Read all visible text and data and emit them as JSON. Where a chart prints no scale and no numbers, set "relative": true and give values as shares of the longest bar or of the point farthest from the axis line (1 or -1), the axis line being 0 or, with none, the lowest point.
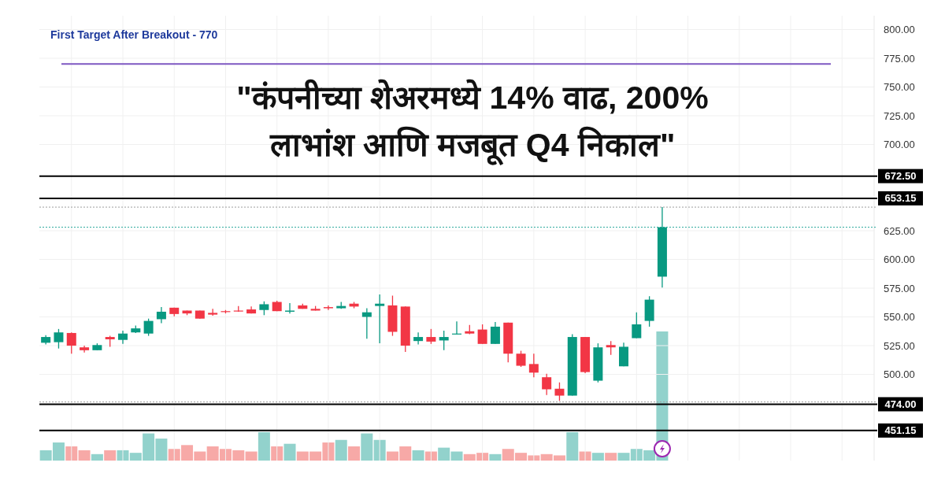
{
  "chart_data": [
    {
      "type": "candlestick",
      "title": "\"कंपनीच्या शेअरमध्ये 14% वाढ, 200%\nलाभांश आणि मजबूत Q4 निकाल\"",
      "categories": [
        null,
        null,
        null,
        null,
        null,
        null,
        null,
        null,
        null,
        null,
        null,
        null,
        null,
        null,
        null,
        null,
        null,
        null,
        null,
        null,
        null,
        null,
        null,
        null,
        null,
        null,
        null,
        null,
        null,
        null,
        null,
        null,
        null,
        null,
        null,
        null,
        null,
        null,
        null,
        null,
        null,
        null,
        null,
        null,
        null,
        null,
        null,
        null,
        null,
        null,
        null,
        null,
        null,
        null,
        null,
        null,
        null,
        null,
        null,
        null,
        null,
        null,
        null,
        null,
        null
      ],
      "ohlc": [
        [
          527.5,
          534,
          526,
          532.5
        ],
        [
          528,
          539.5,
          522.5,
          536.5
        ],
        [
          536,
          536.5,
          518,
          525
        ],
        [
          523.5,
          525,
          519,
          521
        ],
        [
          521,
          527,
          521,
          525.5
        ],
        [
          532.5,
          533.5,
          524,
          530.5
        ],
        [
          530,
          538,
          526.5,
          535.5
        ],
        [
          536.5,
          542.5,
          536,
          540
        ],
        [
          535.5,
          548.5,
          533.5,
          546.5
        ],
        [
          548,
          558.5,
          544.5,
          554.5
        ],
        [
          558,
          558,
          550.5,
          552.5
        ],
        [
          555.5,
          555.5,
          551.5,
          553
        ],
        [
          555.5,
          555.5,
          548.5,
          548.5
        ],
        [
          553.5,
          557,
          551,
          552
        ],
        [
          555,
          556,
          553,
          554.5
        ],
        [
          555.5,
          559.5,
          554.5,
          555
        ],
        [
          556.5,
          559,
          553,
          553
        ],
        [
          556,
          563.5,
          551.5,
          561
        ],
        [
          563,
          564,
          555,
          555
        ],
        [
          554.5,
          562,
          553,
          555.5
        ],
        [
          560,
          561.5,
          557,
          557
        ],
        [
          557,
          559.5,
          555.5,
          555.5
        ],
        [
          558.5,
          560,
          556,
          557.5
        ],
        [
          557.5,
          563,
          557,
          559.5
        ],
        [
          561.5,
          563,
          557.5,
          559
        ],
        [
          550,
          557.5,
          531,
          554
        ],
        [
          559.5,
          569.5,
          527,
          561.5
        ],
        [
          560,
          568.5,
          533.5,
          537
        ],
        [
          559,
          559,
          519.5,
          525
        ],
        [
          529,
          536.5,
          526,
          532.5
        ],
        [
          532.5,
          539.5,
          526.5,
          528.5
        ],
        [
          529.5,
          538,
          521,
          532.5
        ],
        [
          535,
          546,
          535,
          535.5
        ],
        [
          537.5,
          543,
          535,
          535.5
        ],
        [
          539,
          543.5,
          526.5,
          526.5
        ],
        [
          526.5,
          545.5,
          526.5,
          541.5
        ],
        [
          545,
          545,
          510.5,
          518
        ],
        [
          518,
          520.5,
          506.5,
          507.5
        ],
        [
          509,
          518,
          497.5,
          501.5
        ],
        [
          497.5,
          500.5,
          482,
          487
        ],
        [
          487.5,
          493,
          477,
          481.5
        ],
        [
          481.5,
          535,
          481.5,
          532.5
        ],
        [
          532.5,
          532.5,
          501,
          502
        ],
        [
          494.5,
          527,
          493,
          523.5
        ],
        [
          525.5,
          529,
          517,
          523.5
        ],
        [
          507,
          527.5,
          507,
          524
        ],
        [
          531.5,
          554,
          531.5,
          543.5
        ],
        [
          546.5,
          568,
          541.5,
          565
        ],
        [
          585,
          645.5,
          575.5,
          628
        ],
        null,
        null,
        null,
        null,
        null,
        null,
        null,
        null,
        null,
        null,
        null,
        null,
        null,
        null,
        null,
        null
      ],
      "colors": [
        "#089981",
        "#089981",
        "#f23645",
        "#f23645",
        "#089981",
        "#f23645",
        "#089981",
        "#089981",
        "#089981",
        "#089981",
        "#f23645",
        "#f23645",
        "#f23645",
        "#f23645",
        "#f23645",
        "#f23645",
        "#f23645",
        "#089981",
        "#f23645",
        "#089981",
        "#f23645",
        "#f23645",
        "#f23645",
        "#089981",
        "#f23645",
        "#089981",
        "#089981",
        "#f23645",
        "#f23645",
        "#089981",
        "#f23645",
        "#089981",
        "#089981",
        "#f23645",
        "#f23645",
        "#089981",
        "#f23645",
        "#f23645",
        "#f23645",
        "#f23645",
        "#f23645",
        "#089981",
        "#f23645",
        "#089981",
        "#f23645",
        "#089981",
        "#089981",
        "#089981",
        "#089981",
        null,
        null,
        null,
        null,
        null,
        null,
        null,
        null,
        null,
        null,
        null,
        null,
        null,
        null,
        null,
        null
      ],
      "ylim": [
        425,
        812
      ],
      "yticks": [
        {
          "value": 500,
          "label": "500.00"
        },
        {
          "value": 525,
          "label": "525.00"
        },
        {
          "value": 550,
          "label": "550.00"
        },
        {
          "value": 575,
          "label": "575.00"
        },
        {
          "value": 600,
          "label": "600.00"
        },
        {
          "value": 625,
          "label": "625.00"
        },
        {
          "value": 700,
          "label": "700.00"
        },
        {
          "value": 725,
          "label": "725.00"
        },
        {
          "value": 750,
          "label": "750.00"
        },
        {
          "value": 775,
          "label": "775.00"
        },
        {
          "value": 800,
          "label": "800.00"
        }
      ],
      "grid": true,
      "ref_lines": [
        {
          "axis": "y",
          "value": 770,
          "label": "First Target After Breakout - 770",
          "color": "#7e57c2",
          "line_style": "solid"
        },
        {
          "axis": "y",
          "value": 672.5,
          "label": "672.50",
          "color": "#000000",
          "line_style": "solid"
        },
        {
          "axis": "y",
          "value": 653.15,
          "label": "653.15",
          "color": "#000000",
          "line_style": "solid"
        },
        {
          "axis": "y",
          "value": 645.5,
          "color": "#9e9e9e",
          "line_style": "dotted"
        },
        {
          "axis": "y",
          "value": 628,
          "color": "#26a69a",
          "line_style": "dotted"
        },
        {
          "axis": "y",
          "value": 476,
          "color": "#9e9e9e",
          "line_style": "dotted"
        },
        {
          "axis": "y",
          "value": 474,
          "label": "474.00",
          "color": "#000000",
          "line_style": "solid"
        },
        {
          "axis": "y",
          "value": 451.15,
          "label": "451.15",
          "color": "#000000",
          "line_style": "solid"
        }
      ]
    },
    {
      "type": "bar",
      "relative": true,
      "categories": [
        null,
        null,
        null,
        null,
        null,
        null,
        null,
        null,
        null,
        null,
        null,
        null,
        null,
        null,
        null,
        null,
        null,
        null,
        null,
        null,
        null,
        null,
        null,
        null,
        null,
        null,
        null,
        null,
        null,
        null,
        null,
        null,
        null,
        null,
        null,
        null,
        null,
        null,
        null,
        null,
        null,
        null,
        null,
        null,
        null,
        null,
        null,
        null,
        null,
        null,
        null,
        null,
        null,
        null,
        null,
        null,
        null,
        null,
        null,
        null,
        null,
        null,
        null,
        null,
        null
      ],
      "values": [
        0.08,
        0.14,
        0.11,
        0.08,
        0.05,
        0.08,
        0.08,
        0.06,
        0.21,
        0.17,
        0.09,
        0.12,
        0.07,
        0.11,
        0.09,
        0.08,
        0.07,
        0.22,
        0.11,
        0.13,
        0.07,
        0.07,
        0.14,
        0.16,
        0.11,
        0.21,
        0.16,
        0.07,
        0.11,
        0.08,
        0.07,
        0.1,
        0.07,
        0.05,
        0.06,
        0.05,
        0.09,
        0.06,
        0.04,
        0.05,
        0.04,
        0.22,
        0.07,
        0.06,
        0.06,
        0.06,
        0.09,
        0.08,
        1,
        null,
        null,
        null,
        null,
        null,
        null,
        null,
        null,
        null,
        null,
        null,
        null,
        null,
        null,
        null,
        null
      ],
      "colors": [
        "#92d2cc",
        "#92d2cc",
        "#f7a9a7",
        "#f7a9a7",
        "#92d2cc",
        "#f7a9a7",
        "#92d2cc",
        "#92d2cc",
        "#92d2cc",
        "#92d2cc",
        "#f7a9a7",
        "#f7a9a7",
        "#f7a9a7",
        "#f7a9a7",
        "#f7a9a7",
        "#f7a9a7",
        "#f7a9a7",
        "#92d2cc",
        "#f7a9a7",
        "#92d2cc",
        "#f7a9a7",
        "#f7a9a7",
        "#f7a9a7",
        "#92d2cc",
        "#f7a9a7",
        "#92d2cc",
        "#92d2cc",
        "#f7a9a7",
        "#f7a9a7",
        "#92d2cc",
        "#f7a9a7",
        "#92d2cc",
        "#92d2cc",
        "#f7a9a7",
        "#f7a9a7",
        "#92d2cc",
        "#f7a9a7",
        "#f7a9a7",
        "#f7a9a7",
        "#f7a9a7",
        "#f7a9a7",
        "#92d2cc",
        "#f7a9a7",
        "#92d2cc",
        "#f7a9a7",
        "#92d2cc",
        "#92d2cc",
        "#92d2cc",
        "#92d2cc",
        null,
        null,
        null,
        null,
        null,
        null,
        null,
        null,
        null,
        null,
        null,
        null,
        null,
        null,
        null,
        null
      ]
    }
  ]
}
